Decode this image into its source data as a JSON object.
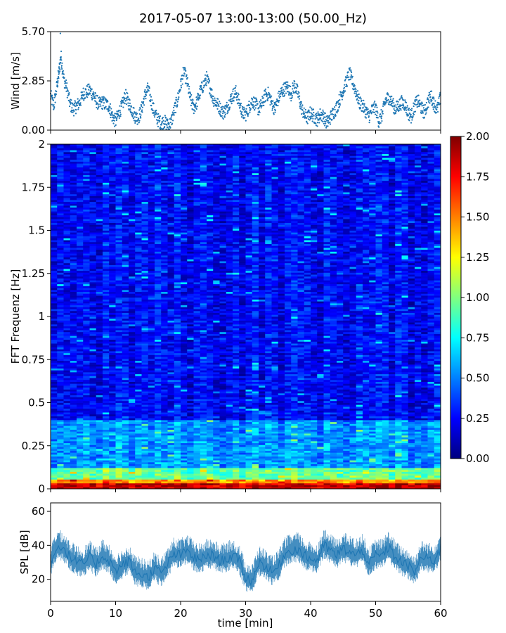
{
  "figure": {
    "title": "2017-05-07 13:00-13:00 (50.00_Hz)"
  },
  "chart_data": [
    {
      "type": "scatter",
      "name": "wind",
      "ylabel": "Wind [m/s]",
      "xlim": [
        0,
        60
      ],
      "ylim": [
        0.0,
        5.7
      ],
      "yticks": [
        0.0,
        2.85,
        5.7
      ],
      "ytick_labels": [
        "0.00",
        "2.85",
        "5.70"
      ],
      "xticks": [
        0,
        10,
        20,
        30,
        40,
        50,
        60
      ],
      "show_xtick_labels": false,
      "color": "#1f77b4",
      "points": [
        [
          0,
          2.0
        ],
        [
          0.5,
          1.4
        ],
        [
          1,
          2.6
        ],
        [
          1.3,
          3.4
        ],
        [
          1.6,
          4.3
        ],
        [
          2,
          3.0
        ],
        [
          2.5,
          2.4
        ],
        [
          3,
          1.5
        ],
        [
          3.5,
          1.2
        ],
        [
          4,
          1.4
        ],
        [
          4.5,
          1.6
        ],
        [
          5,
          2.1
        ],
        [
          5.5,
          2.2
        ],
        [
          6,
          2.3
        ],
        [
          6.5,
          2.1
        ],
        [
          7,
          1.7
        ],
        [
          7.5,
          1.5
        ],
        [
          8,
          1.6
        ],
        [
          8.5,
          1.5
        ],
        [
          9,
          1.4
        ],
        [
          9.5,
          0.8
        ],
        [
          10,
          0.5
        ],
        [
          10.5,
          1.0
        ],
        [
          11,
          1.4
        ],
        [
          11.5,
          2.0
        ],
        [
          12,
          1.6
        ],
        [
          12.5,
          1.2
        ],
        [
          13,
          0.8
        ],
        [
          13.5,
          0.7
        ],
        [
          14,
          1.2
        ],
        [
          14.5,
          2.0
        ],
        [
          15,
          2.4
        ],
        [
          15.5,
          1.6
        ],
        [
          16,
          1.0
        ],
        [
          16.5,
          0.6
        ],
        [
          17,
          0.4
        ],
        [
          17.5,
          0.5
        ],
        [
          18,
          0.3
        ],
        [
          18.5,
          0.4
        ],
        [
          19,
          1.1
        ],
        [
          19.5,
          1.7
        ],
        [
          20,
          2.6
        ],
        [
          20.5,
          3.4
        ],
        [
          21,
          2.8
        ],
        [
          21.5,
          1.8
        ],
        [
          22,
          1.3
        ],
        [
          22.5,
          1.6
        ],
        [
          23,
          2.2
        ],
        [
          23.5,
          2.6
        ],
        [
          24,
          3.0
        ],
        [
          24.5,
          2.5
        ],
        [
          25,
          1.8
        ],
        [
          25.5,
          1.6
        ],
        [
          26,
          1.3
        ],
        [
          26.5,
          1.0
        ],
        [
          27,
          1.2
        ],
        [
          27.5,
          1.6
        ],
        [
          28,
          2.0
        ],
        [
          28.5,
          2.2
        ],
        [
          29,
          1.6
        ],
        [
          29.5,
          1.0
        ],
        [
          30,
          0.9
        ],
        [
          30.5,
          1.3
        ],
        [
          31,
          1.7
        ],
        [
          31.5,
          1.5
        ],
        [
          32,
          1.2
        ],
        [
          32.5,
          1.5
        ],
        [
          33,
          2.0
        ],
        [
          33.5,
          2.1
        ],
        [
          34,
          1.6
        ],
        [
          34.5,
          1.2
        ],
        [
          35,
          1.8
        ],
        [
          35.5,
          2.2
        ],
        [
          36,
          2.4
        ],
        [
          36.5,
          2.5
        ],
        [
          37,
          2.1
        ],
        [
          37.5,
          2.6
        ],
        [
          38,
          2.2
        ],
        [
          38.5,
          1.4
        ],
        [
          39,
          0.9
        ],
        [
          39.5,
          0.7
        ],
        [
          40,
          1.0
        ],
        [
          40.5,
          0.8
        ],
        [
          41,
          0.6
        ],
        [
          41.5,
          0.9
        ],
        [
          42,
          0.8
        ],
        [
          42.5,
          0.4
        ],
        [
          43,
          0.7
        ],
        [
          43.5,
          1.0
        ],
        [
          44,
          1.3
        ],
        [
          44.5,
          1.8
        ],
        [
          45,
          2.3
        ],
        [
          45.5,
          2.8
        ],
        [
          46,
          3.3
        ],
        [
          46.5,
          2.7
        ],
        [
          47,
          2.2
        ],
        [
          47.5,
          1.6
        ],
        [
          48,
          1.4
        ],
        [
          48.5,
          1.1
        ],
        [
          49,
          0.8
        ],
        [
          49.5,
          1.2
        ],
        [
          50,
          1.3
        ],
        [
          50.5,
          0.5
        ],
        [
          51,
          0.9
        ],
        [
          51.5,
          1.7
        ],
        [
          52,
          1.9
        ],
        [
          52.5,
          1.6
        ],
        [
          53,
          1.2
        ],
        [
          53.5,
          1.4
        ],
        [
          54,
          1.6
        ],
        [
          54.5,
          1.5
        ],
        [
          55,
          1.0
        ],
        [
          55.5,
          0.8
        ],
        [
          56,
          1.4
        ],
        [
          56.5,
          1.7
        ],
        [
          57,
          1.3
        ],
        [
          57.5,
          1.0
        ],
        [
          58,
          1.6
        ],
        [
          58.5,
          2.0
        ],
        [
          59,
          1.5
        ],
        [
          59.5,
          1.2
        ],
        [
          60,
          1.9
        ]
      ]
    },
    {
      "type": "heatmap",
      "name": "spectrogram",
      "ylabel": "FFT Frequenz [Hz]",
      "xlim": [
        0,
        60
      ],
      "ylim": [
        0,
        2
      ],
      "yticks": [
        0,
        0.25,
        0.5,
        0.75,
        1,
        1.25,
        1.5,
        1.75,
        2
      ],
      "ytick_labels": [
        "0",
        "0.25",
        "0.5",
        "0.75",
        "1",
        "1.25",
        "1.5",
        "1.75",
        "2"
      ],
      "xticks": [
        0,
        10,
        20,
        30,
        40,
        50,
        60
      ],
      "show_xtick_labels": false,
      "colormap": "jet",
      "colorbar": {
        "vmin": 0.0,
        "vmax": 2.0,
        "ticks": [
          0.0,
          0.25,
          0.5,
          0.75,
          1.0,
          1.25,
          1.5,
          1.75,
          2.0
        ],
        "tick_labels": [
          "0.00",
          "0.25",
          "0.50",
          "0.75",
          "1.00",
          "1.25",
          "1.50",
          "1.75",
          "2.00"
        ]
      },
      "time_bins": 60,
      "freq_bins": 180,
      "band_profile": [
        {
          "freq_max": 0.03,
          "level": 1.85
        },
        {
          "freq_max": 0.06,
          "level": 1.45
        },
        {
          "freq_max": 0.12,
          "level": 0.95
        },
        {
          "freq_max": 0.4,
          "level": 0.55
        },
        {
          "freq_max": 2.0,
          "level": 0.25
        }
      ]
    },
    {
      "type": "line",
      "name": "spl",
      "ylabel": "SPL [dB]",
      "xlabel": "time [min]",
      "xlim": [
        0,
        60
      ],
      "ylim": [
        7,
        65
      ],
      "yticks": [
        20,
        40,
        60
      ],
      "ytick_labels": [
        "20",
        "40",
        "60"
      ],
      "xticks": [
        0,
        10,
        20,
        30,
        40,
        50,
        60
      ],
      "xtick_labels": [
        "0",
        "10",
        "20",
        "30",
        "40",
        "50",
        "60"
      ],
      "color": "#1f77b4",
      "x": [
        0,
        1,
        2,
        3,
        4,
        5,
        6,
        7,
        8,
        9,
        10,
        11,
        12,
        13,
        14,
        15,
        16,
        17,
        18,
        19,
        20,
        21,
        22,
        23,
        24,
        25,
        26,
        27,
        28,
        29,
        30,
        31,
        32,
        33,
        34,
        35,
        36,
        37,
        38,
        39,
        40,
        41,
        42,
        43,
        44,
        45,
        46,
        47,
        48,
        49,
        50,
        51,
        52,
        53,
        54,
        55,
        56,
        57,
        58,
        59,
        60
      ],
      "y": [
        30,
        40,
        38,
        33,
        30,
        29,
        33,
        29,
        34,
        31,
        25,
        28,
        31,
        24,
        23,
        21,
        27,
        23,
        29,
        35,
        34,
        37,
        33,
        31,
        34,
        34,
        31,
        32,
        34,
        31,
        21,
        19,
        30,
        28,
        24,
        27,
        35,
        37,
        38,
        34,
        32,
        31,
        40,
        37,
        34,
        38,
        36,
        34,
        37,
        29,
        34,
        34,
        39,
        33,
        30,
        28,
        24,
        33,
        32,
        31,
        38
      ],
      "band": [
        -8,
        10
      ]
    }
  ]
}
